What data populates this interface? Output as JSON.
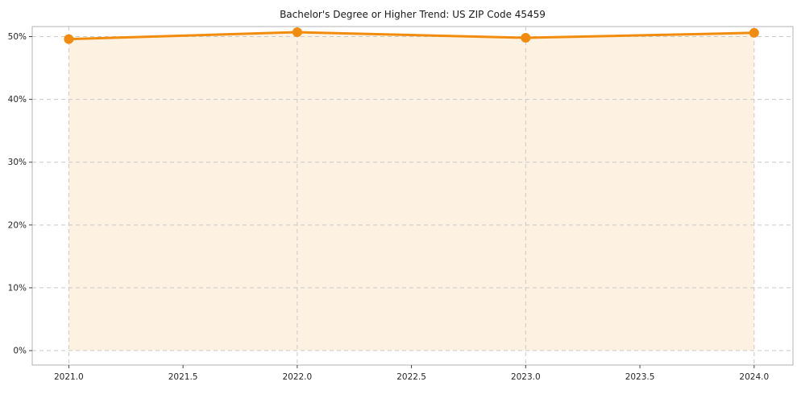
{
  "chart_data": {
    "type": "area",
    "title": "Bachelor's Degree or Higher Trend: US ZIP Code 45459",
    "series_name": "Bachelor's Degree or Higher (%)",
    "x": [
      2021.0,
      2022.0,
      2023.0,
      2024.0
    ],
    "values": [
      49.6,
      50.7,
      49.8,
      50.6
    ],
    "xlabel": "",
    "ylabel": "",
    "xticks": [
      2021.0,
      2021.5,
      2022.0,
      2022.5,
      2023.0,
      2023.5,
      2024.0
    ],
    "xtick_labels": [
      "2021.0",
      "2021.5",
      "2022.0",
      "2022.5",
      "2023.0",
      "2023.5",
      "2024.0"
    ],
    "yticks": [
      0,
      10,
      20,
      30,
      40,
      50
    ],
    "ytick_labels": [
      "0%",
      "10%",
      "20%",
      "30%",
      "40%",
      "50%"
    ],
    "xlim": [
      2020.84,
      2024.17
    ],
    "ylim": [
      -2.3,
      51.6
    ],
    "grid": true,
    "legend": "none",
    "colors": {
      "line": "#f28c0e",
      "marker": "#f28c0e",
      "fill": "#fdf1e2",
      "grid": "#c9c9c9",
      "spine": "#b3b3b3",
      "tick_text": "#262626"
    }
  }
}
